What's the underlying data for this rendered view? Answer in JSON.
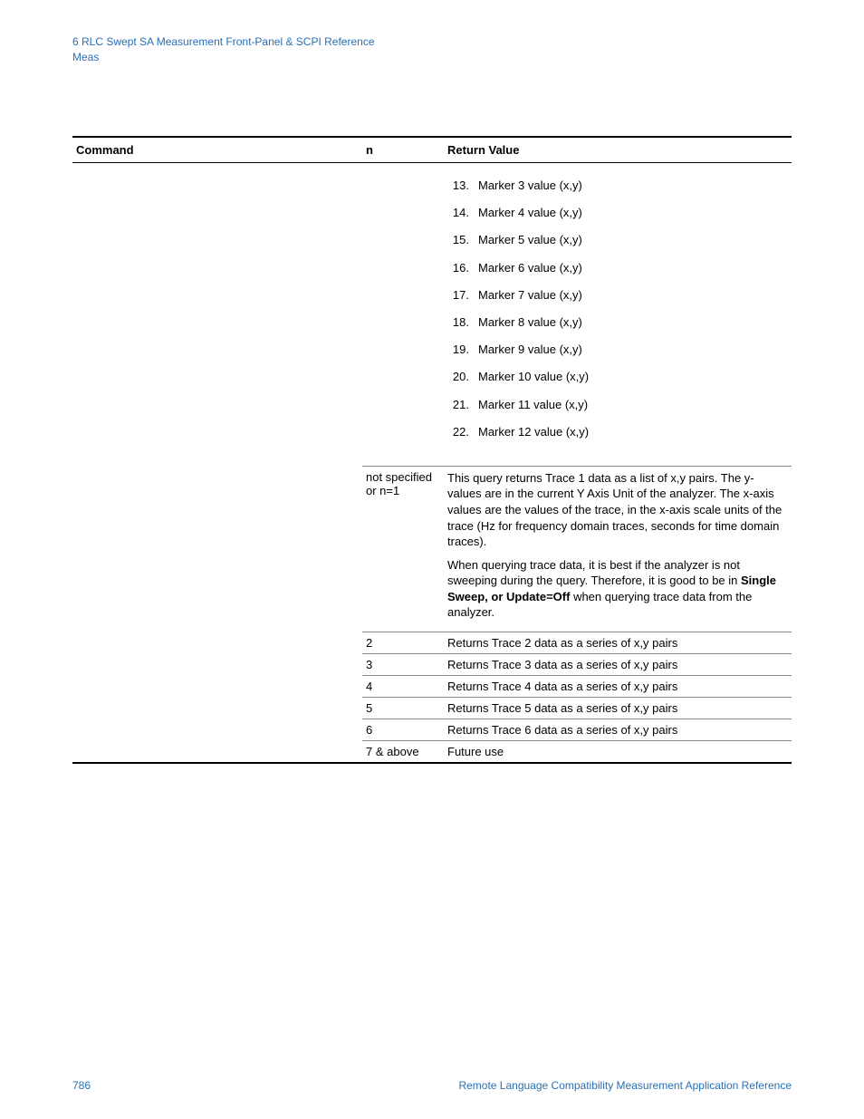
{
  "header": {
    "chapter": "6  RLC Swept SA Measurement Front-Panel & SCPI Reference",
    "subsection": "Meas"
  },
  "table": {
    "headers": {
      "command": "Command",
      "n": "n",
      "return_value": "Return Value"
    },
    "markers": [
      {
        "num": "13.",
        "text": "Marker 3 value (x,y)"
      },
      {
        "num": "14.",
        "text": "Marker 4 value (x,y)"
      },
      {
        "num": "15.",
        "text": "Marker 5 value (x,y)"
      },
      {
        "num": "16.",
        "text": "Marker 6 value (x,y)"
      },
      {
        "num": "17.",
        "text": "Marker 7 value (x,y)"
      },
      {
        "num": "18.",
        "text": "Marker 8 value (x,y)"
      },
      {
        "num": "19.",
        "text": "Marker 9 value (x,y)"
      },
      {
        "num": "20.",
        "text": "Marker 10 value (x,y)"
      },
      {
        "num": "21.",
        "text": "Marker 11 value (x,y)"
      },
      {
        "num": "22.",
        "text": "Marker 12 value (x,y)"
      }
    ],
    "not_specified": {
      "n_label": "not specified or n=1",
      "para1": "This query returns Trace 1 data as a list of x,y pairs. The y-values are in the current Y Axis Unit of the analyzer. The x-axis values are the values of the trace, in the x-axis scale units of the trace (Hz for frequency domain traces, seconds for time domain traces).",
      "para2_pre": "When querying trace data, it is best if the analyzer is not sweeping during the query. Therefore, it is good to be in ",
      "para2_bold": "Single Sweep, or Update=Off",
      "para2_post": " when querying trace data from the analyzer."
    },
    "rows": [
      {
        "n": "2",
        "text": "Returns Trace 2 data as a series of x,y pairs"
      },
      {
        "n": "3",
        "text": "Returns Trace 3 data as a series of x,y pairs"
      },
      {
        "n": "4",
        "text": "Returns Trace 4 data as a series of x,y pairs"
      },
      {
        "n": "5",
        "text": "Returns Trace 5 data as a series of x,y pairs"
      },
      {
        "n": "6",
        "text": "Returns Trace 6 data as a series of x,y pairs"
      }
    ],
    "future": {
      "n": "7 & above",
      "text": "Future use"
    }
  },
  "footer": {
    "page": "786",
    "title": "Remote Language Compatibility Measurement Application Reference"
  }
}
